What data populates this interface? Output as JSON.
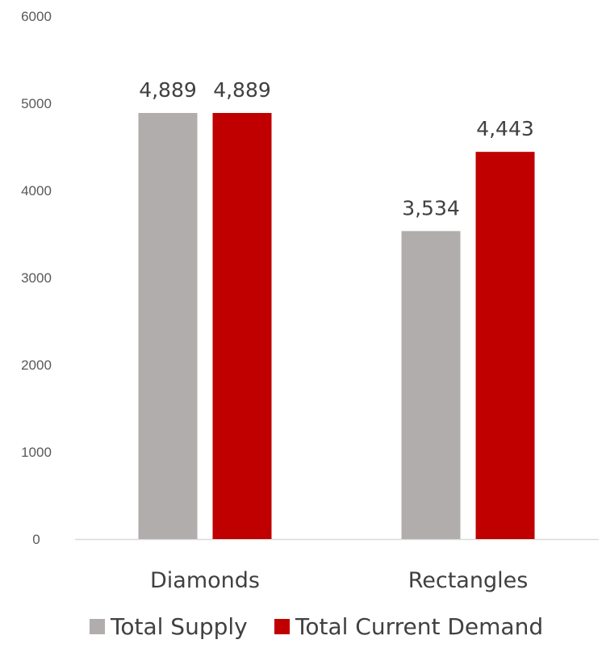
{
  "chart_data": {
    "type": "bar",
    "title": "",
    "xlabel": "",
    "ylabel": "",
    "categories": [
      "Diamonds",
      "Rectangles"
    ],
    "series": [
      {
        "name": "Total Supply",
        "values": [
          4889,
          3534
        ],
        "labels": [
          "4,889",
          "3,534"
        ],
        "color": "#b0adac"
      },
      {
        "name": "Total Current Demand",
        "values": [
          4889,
          4443
        ],
        "labels": [
          "4,889",
          "4,443"
        ],
        "color": "#c00000"
      }
    ],
    "ylim": [
      0,
      6000
    ],
    "yticks": [
      0,
      1000,
      2000,
      3000,
      4000,
      5000,
      6000
    ],
    "ytick_labels": [
      "0",
      "1000",
      "2000",
      "3000",
      "4000",
      "5000",
      "6000"
    ],
    "grid": false,
    "legend": "bottom",
    "axis_line_color": "#d9d9d9"
  }
}
